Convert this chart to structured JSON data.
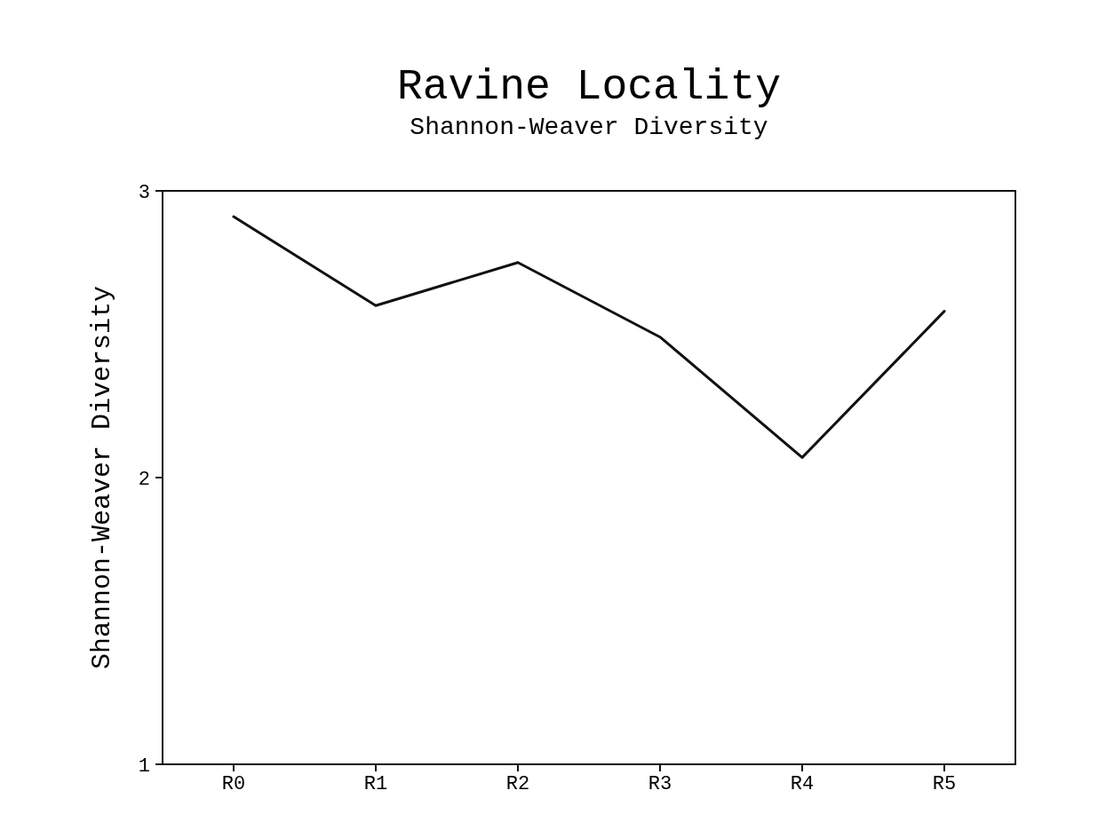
{
  "chart_data": {
    "type": "line",
    "title": "Ravine Locality",
    "subtitle": "Shannon-Weaver Diversity",
    "ylabel": "Shannon-Weaver Diversity",
    "categories": [
      "R0",
      "R1",
      "R2",
      "R3",
      "R4",
      "R5"
    ],
    "series": [
      {
        "color": "#111111",
        "values": [
          2.91,
          2.6,
          2.75,
          2.49,
          2.07,
          2.58
        ]
      }
    ],
    "ylim": [
      1,
      3
    ],
    "yticks": [
      1,
      2,
      3
    ],
    "line_style": "solid"
  }
}
